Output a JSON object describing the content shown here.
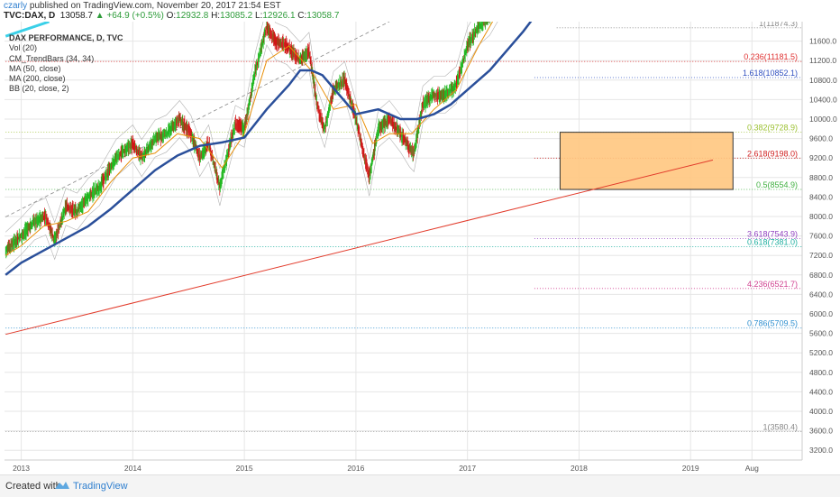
{
  "header": {
    "author": "czarly",
    "published_text": "published on TradingView.com, November 20, 2017 21:54 EST",
    "symbol": "TVC:DAX, D",
    "last": "13058.7",
    "change": "▲ +64.9 (+0.5%)",
    "o_label": "O:",
    "o_value": "12932.8",
    "h_label": "H:",
    "h_value": "13085.2",
    "l_label": "L:",
    "l_value": "12926.1",
    "c_label": "C:",
    "c_value": "13058.7"
  },
  "legend": {
    "title": "DAX PERFORMANCE, D, TVC",
    "items": [
      "Vol (20)",
      "CM_TrendBars (34, 34)",
      "MA (50, close)",
      "MA (200, close)",
      "BB (20, close, 2)"
    ]
  },
  "footer": {
    "created_with": "Created with",
    "brand": "TradingView"
  },
  "colors": {
    "bull": "#22b822",
    "bear": "#d01818",
    "ma200": "#2a4f9a",
    "ma50": "#e8900a",
    "bb": "#b0b0b0",
    "trend_up": "#e23b2b",
    "zone_fill": "#ffc680",
    "zone_stroke": "#333333",
    "cyan_line": "#3ad0e8",
    "grid": "#e6e6e6"
  },
  "chart_data": {
    "type": "candlestick",
    "x_ticks": [
      "2013",
      "2014",
      "2015",
      "2016",
      "2017",
      "2018",
      "2019",
      "Aug"
    ],
    "y_ticks": [
      3200,
      3600,
      4000,
      4400,
      4800,
      5200,
      5600,
      6000,
      6400,
      6800,
      7200,
      7600,
      8000,
      8400,
      8800,
      9200,
      9600,
      10000,
      10400,
      10800,
      11200,
      11600
    ],
    "y_tick_labels": [
      "3200.0",
      "3600.0",
      "4000.0",
      "4400.0",
      "4800.0",
      "5200.0",
      "5600.0",
      "6000.0",
      "6400.0",
      "6800.0",
      "7200.0",
      "7600.0",
      "8000.0",
      "8400.0",
      "8800.0",
      "9200.0",
      "9600.0",
      "10000.0",
      "10400.0",
      "10800.0",
      "11200.0",
      "11600.0"
    ],
    "ylim": [
      3000,
      12000
    ],
    "xlim": [
      2012.85,
      2020.0
    ],
    "price_path": [
      [
        2012.86,
        7300
      ],
      [
        2013.0,
        7600
      ],
      [
        2013.12,
        7900
      ],
      [
        2013.22,
        8000
      ],
      [
        2013.3,
        7500
      ],
      [
        2013.4,
        8200
      ],
      [
        2013.5,
        8100
      ],
      [
        2013.6,
        8400
      ],
      [
        2013.7,
        8600
      ],
      [
        2013.85,
        9200
      ],
      [
        2014.0,
        9500
      ],
      [
        2014.08,
        9200
      ],
      [
        2014.2,
        9600
      ],
      [
        2014.3,
        9700
      ],
      [
        2014.42,
        10000
      ],
      [
        2014.52,
        9700
      ],
      [
        2014.6,
        9200
      ],
      [
        2014.68,
        9500
      ],
      [
        2014.78,
        8600
      ],
      [
        2014.82,
        9000
      ],
      [
        2014.92,
        9900
      ],
      [
        2015.0,
        9800
      ],
      [
        2015.1,
        11000
      ],
      [
        2015.2,
        11900
      ],
      [
        2015.28,
        11600
      ],
      [
        2015.38,
        11500
      ],
      [
        2015.5,
        11200
      ],
      [
        2015.58,
        11400
      ],
      [
        2015.66,
        10200
      ],
      [
        2015.72,
        9800
      ],
      [
        2015.8,
        10600
      ],
      [
        2015.9,
        10800
      ],
      [
        2016.0,
        10000
      ],
      [
        2016.08,
        9200
      ],
      [
        2016.12,
        8800
      ],
      [
        2016.2,
        9800
      ],
      [
        2016.3,
        10000
      ],
      [
        2016.4,
        9700
      ],
      [
        2016.48,
        9400
      ],
      [
        2016.52,
        9300
      ],
      [
        2016.6,
        10300
      ],
      [
        2016.7,
        10500
      ],
      [
        2016.8,
        10500
      ],
      [
        2016.9,
        10700
      ],
      [
        2017.0,
        11500
      ],
      [
        2017.1,
        11900
      ],
      [
        2017.2,
        12100
      ],
      [
        2017.3,
        12500
      ]
    ],
    "ma200_path": [
      [
        2012.86,
        6800
      ],
      [
        2013.0,
        7050
      ],
      [
        2013.2,
        7300
      ],
      [
        2013.4,
        7550
      ],
      [
        2013.6,
        7800
      ],
      [
        2013.8,
        8150
      ],
      [
        2014.0,
        8550
      ],
      [
        2014.2,
        8950
      ],
      [
        2014.4,
        9250
      ],
      [
        2014.6,
        9450
      ],
      [
        2014.8,
        9520
      ],
      [
        2015.0,
        9620
      ],
      [
        2015.2,
        10200
      ],
      [
        2015.4,
        10700
      ],
      [
        2015.5,
        11000
      ],
      [
        2015.6,
        11000
      ],
      [
        2015.7,
        10900
      ],
      [
        2015.85,
        10500
      ],
      [
        2016.0,
        10100
      ],
      [
        2016.2,
        10200
      ],
      [
        2016.4,
        10000
      ],
      [
        2016.55,
        10000
      ],
      [
        2016.7,
        10100
      ],
      [
        2016.85,
        10300
      ],
      [
        2017.0,
        10600
      ],
      [
        2017.2,
        11000
      ],
      [
        2017.35,
        11400
      ],
      [
        2017.5,
        11800
      ],
      [
        2017.6,
        12100
      ]
    ],
    "ma50_path": [
      [
        2012.86,
        7200
      ],
      [
        2013.0,
        7400
      ],
      [
        2013.2,
        7800
      ],
      [
        2013.4,
        7900
      ],
      [
        2013.6,
        8100
      ],
      [
        2013.8,
        8700
      ],
      [
        2014.0,
        9200
      ],
      [
        2014.2,
        9300
      ],
      [
        2014.4,
        9700
      ],
      [
        2014.6,
        9600
      ],
      [
        2014.8,
        9000
      ],
      [
        2015.0,
        9700
      ],
      [
        2015.2,
        11200
      ],
      [
        2015.4,
        11500
      ],
      [
        2015.6,
        11000
      ],
      [
        2015.8,
        10200
      ],
      [
        2016.0,
        10300
      ],
      [
        2016.15,
        9500
      ],
      [
        2016.3,
        9700
      ],
      [
        2016.5,
        9700
      ],
      [
        2016.7,
        10200
      ],
      [
        2016.9,
        10600
      ],
      [
        2017.1,
        11500
      ],
      [
        2017.3,
        12300
      ]
    ],
    "fib_levels": [
      {
        "label": "1(11874.3)",
        "value": 11874.3,
        "color": "#888888",
        "x_start": 2017.8
      },
      {
        "label": "0.236(11181.5)",
        "value": 11181.5,
        "color": "#e03030",
        "x_start": 2012.86
      },
      {
        "label": "1.618(10852.1)",
        "value": 10852.1,
        "color": "#3050c0",
        "x_start": 2017.6
      },
      {
        "label": "0.382(9728.9)",
        "value": 9728.9,
        "color": "#9bc030",
        "x_start": 2012.86
      },
      {
        "label": "2.618(9198.0)",
        "value": 9198.0,
        "color": "#d02020",
        "x_start": 2017.6
      },
      {
        "label": "0.5(8554.9)",
        "value": 8554.9,
        "color": "#40b040",
        "x_start": 2012.86
      },
      {
        "label": "3.618(7543.9)",
        "value": 7543.9,
        "color": "#9040c0",
        "x_start": 2017.6
      },
      {
        "label": "0.618(7381.0)",
        "value": 7381.0,
        "color": "#20b0a0",
        "x_start": 2012.86
      },
      {
        "label": "4.236(6521.7)",
        "value": 6521.7,
        "color": "#d04090",
        "x_start": 2017.6
      },
      {
        "label": "0.786(5709.5)",
        "value": 5709.5,
        "color": "#3090d0",
        "x_start": 2012.86
      },
      {
        "label": "1(3580.4)",
        "value": 3580.4,
        "color": "#888888",
        "x_start": 2012.86
      }
    ],
    "zone": {
      "x0": 2017.83,
      "x1": 2019.38,
      "y0": 8554.9,
      "y1": 9728.9
    },
    "trend_line": [
      [
        2012.86,
        5580
      ],
      [
        2019.2,
        9160
      ]
    ],
    "channel_line": [
      [
        2012.86,
        7990
      ],
      [
        2016.3,
        12000
      ]
    ],
    "cyan_line": [
      [
        2012.86,
        11700
      ],
      [
        2013.25,
        12000
      ]
    ]
  }
}
